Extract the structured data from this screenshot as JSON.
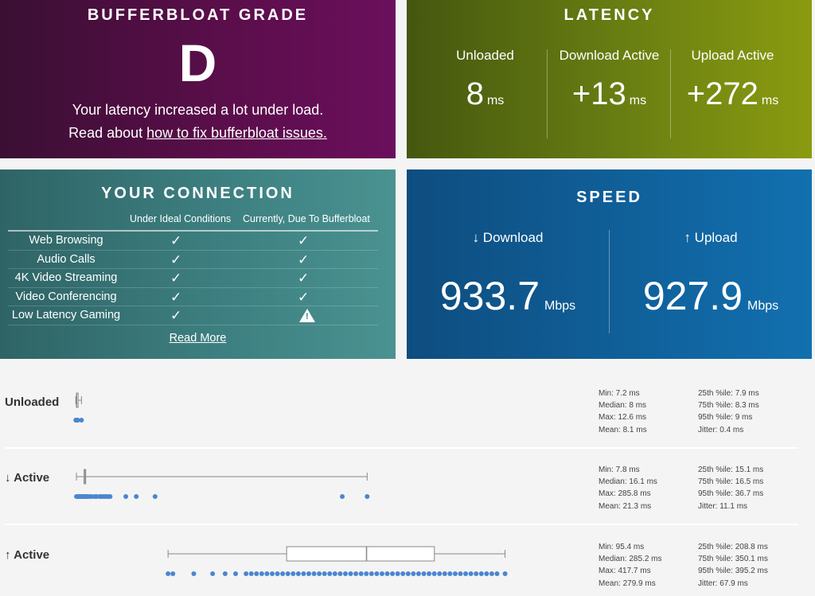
{
  "grade": {
    "title": "BUFFERBLOAT GRADE",
    "letter": "D",
    "line1": "Your latency increased a lot under load.",
    "line2_prefix": "Read about ",
    "line2_link": "how to fix bufferbloat issues."
  },
  "latency": {
    "title": "LATENCY",
    "columns": [
      {
        "label": "Unloaded",
        "value": "8",
        "unit": "ms"
      },
      {
        "label": "Download Active",
        "value": "+13",
        "unit": "ms"
      },
      {
        "label": "Upload Active",
        "value": "+272",
        "unit": "ms"
      }
    ]
  },
  "connection": {
    "title": "YOUR CONNECTION",
    "col_ideal": "Under Ideal Conditions",
    "col_current": "Currently, Due To Bufferbloat",
    "rows": [
      {
        "name": "Web Browsing",
        "ideal": "✓",
        "current": "✓"
      },
      {
        "name": "Audio Calls",
        "ideal": "✓",
        "current": "✓"
      },
      {
        "name": "4K Video Streaming",
        "ideal": "✓",
        "current": "✓"
      },
      {
        "name": "Video Conferencing",
        "ideal": "✓",
        "current": "✓"
      },
      {
        "name": "Low Latency Gaming",
        "ideal": "✓",
        "current": "warning"
      }
    ],
    "read_more": "Read More"
  },
  "speed": {
    "title": "SPEED",
    "download_label": "↓ Download",
    "download_value": "933.7",
    "download_unit": "Mbps",
    "upload_label": "↑ Upload",
    "upload_value": "927.9",
    "upload_unit": "Mbps"
  },
  "stats": {
    "unloaded": {
      "label": "Unloaded",
      "min": "Min: 7.2 ms",
      "median": "Median: 8 ms",
      "max": "Max: 12.6 ms",
      "mean": "Mean: 8.1 ms",
      "p25": "25th %ile: 7.9 ms",
      "p75": "75th %ile: 8.3 ms",
      "p95": "95th %ile: 9 ms",
      "jitter": "Jitter: 0.4 ms",
      "box_ms": {
        "min": 7.2,
        "q1": 7.9,
        "median": 8,
        "q3": 8.3,
        "max": 12.6
      },
      "points_ms": [
        7.2,
        7.4,
        7.6,
        7.8,
        7.9,
        8.0,
        8.0,
        8.1,
        8.2,
        8.3,
        8.5,
        9.0,
        12.6
      ]
    },
    "download": {
      "label": "↓ Active",
      "min": "Min: 7.8 ms",
      "median": "Median: 16.1 ms",
      "max": "Max: 285.8 ms",
      "mean": "Mean: 21.3 ms",
      "p25": "25th %ile: 15.1 ms",
      "p75": "75th %ile: 16.5 ms",
      "p95": "95th %ile: 36.7 ms",
      "jitter": "Jitter: 11.1 ms",
      "box_ms": {
        "min": 7.8,
        "q1": 15.1,
        "median": 16.1,
        "q3": 16.5,
        "max": 285.8
      },
      "points_ms": [
        7.8,
        9,
        10,
        11,
        12,
        13,
        14,
        15,
        15.5,
        16,
        16.5,
        17,
        18,
        20,
        22,
        25,
        27,
        30,
        32,
        34,
        36,
        38,
        40,
        55,
        65,
        83,
        262,
        285.8
      ]
    },
    "upload": {
      "label": "↑ Active",
      "min": "Min: 95.4 ms",
      "median": "Median: 285.2 ms",
      "max": "Max: 417.7 ms",
      "mean": "Mean: 279.9 ms",
      "p25": "25th %ile: 208.8 ms",
      "p75": "75th %ile: 350.1 ms",
      "p95": "95th %ile: 395.2 ms",
      "jitter": "Jitter: 67.9 ms",
      "box_ms": {
        "min": 95.4,
        "q1": 208.8,
        "median": 285.2,
        "q3": 350.1,
        "max": 417.7
      },
      "points_ms": [
        95.4,
        100,
        120,
        138,
        150,
        160,
        170,
        175,
        180,
        185,
        190,
        195,
        200,
        205,
        210,
        215,
        220,
        225,
        230,
        235,
        240,
        245,
        250,
        255,
        260,
        265,
        270,
        275,
        280,
        285,
        290,
        295,
        300,
        305,
        310,
        315,
        320,
        325,
        330,
        335,
        340,
        345,
        350,
        355,
        360,
        365,
        370,
        375,
        380,
        385,
        390,
        395,
        400,
        405,
        410,
        417.7
      ]
    }
  },
  "colors": {
    "point": "#4a86d0",
    "box_stroke": "#888888"
  }
}
